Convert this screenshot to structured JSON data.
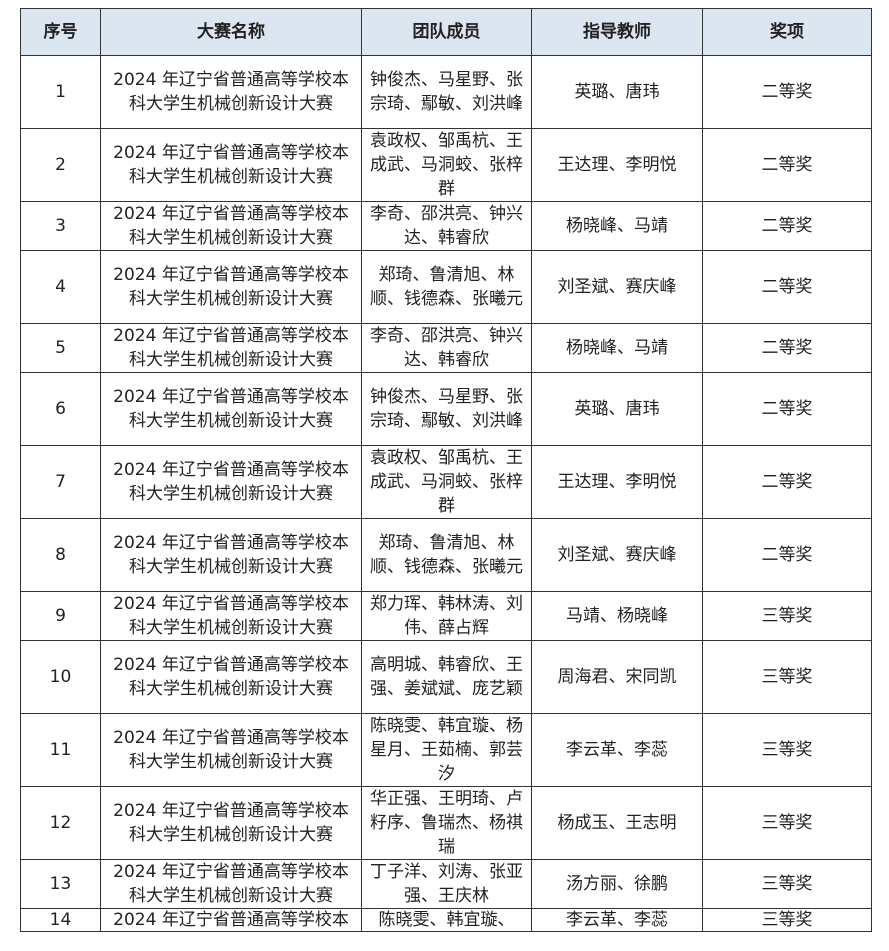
{
  "table": {
    "headers": [
      "序号",
      "大赛名称",
      "团队成员",
      "指导教师",
      "奖项"
    ],
    "rows": [
      {
        "no": "1",
        "competition": "2024 年辽宁省普通高等学校本科大学生机械创新设计大赛",
        "members": "钟俊杰、马星野、张宗琦、鄢敏、刘洪峰",
        "advisors": "英璐、唐玮",
        "award": "二等奖"
      },
      {
        "no": "2",
        "competition": "2024 年辽宁省普通高等学校本科大学生机械创新设计大赛",
        "members": "袁政权、邹禹杭、王成武、马洞蛟、张梓群",
        "advisors": "王达理、李明悦",
        "award": "二等奖"
      },
      {
        "no": "3",
        "competition": "2024 年辽宁省普通高等学校本科大学生机械创新设计大赛",
        "members": "李奇、邵洪亮、钟兴达、韩睿欣",
        "advisors": "杨晓峰、马靖",
        "award": "二等奖"
      },
      {
        "no": "4",
        "competition": "2024 年辽宁省普通高等学校本科大学生机械创新设计大赛",
        "members": "郑琦、鲁清旭、林顺、钱德森、张曦元",
        "advisors": "刘圣斌、赛庆峰",
        "award": "二等奖"
      },
      {
        "no": "5",
        "competition": "2024 年辽宁省普通高等学校本科大学生机械创新设计大赛",
        "members": "李奇、邵洪亮、钟兴达、韩睿欣",
        "advisors": "杨晓峰、马靖",
        "award": "二等奖"
      },
      {
        "no": "6",
        "competition": "2024 年辽宁省普通高等学校本科大学生机械创新设计大赛",
        "members": "钟俊杰、马星野、张宗琦、鄢敏、刘洪峰",
        "advisors": "英璐、唐玮",
        "award": "二等奖"
      },
      {
        "no": "7",
        "competition": "2024 年辽宁省普通高等学校本科大学生机械创新设计大赛",
        "members": "袁政权、邹禹杭、王成武、马洞蛟、张梓群",
        "advisors": "王达理、李明悦",
        "award": "二等奖"
      },
      {
        "no": "8",
        "competition": "2024 年辽宁省普通高等学校本科大学生机械创新设计大赛",
        "members": "郑琦、鲁清旭、林顺、钱德森、张曦元",
        "advisors": "刘圣斌、赛庆峰",
        "award": "二等奖"
      },
      {
        "no": "9",
        "competition": "2024 年辽宁省普通高等学校本科大学生机械创新设计大赛",
        "members": "郑力珲、韩林涛、刘伟、薛占辉",
        "advisors": "马靖、杨晓峰",
        "award": "三等奖"
      },
      {
        "no": "10",
        "competition": "2024 年辽宁省普通高等学校本科大学生机械创新设计大赛",
        "members": "高明城、韩睿欣、王强、姜斌斌、庞艺颖",
        "advisors": "周海君、宋同凯",
        "award": "三等奖"
      },
      {
        "no": "11",
        "competition": "2024 年辽宁省普通高等学校本科大学生机械创新设计大赛",
        "members": "陈晓雯、韩宜璇、杨星月、王茹楠、郭芸汐",
        "advisors": "李云革、李蕊",
        "award": "三等奖"
      },
      {
        "no": "12",
        "competition": "2024 年辽宁省普通高等学校本科大学生机械创新设计大赛",
        "members": "华正强、王明琦、卢籽序、鲁瑞杰、杨祺瑞",
        "advisors": "杨成玉、王志明",
        "award": "三等奖"
      },
      {
        "no": "13",
        "competition": "2024 年辽宁省普通高等学校本科大学生机械创新设计大赛",
        "members": "丁子洋、刘涛、张亚强、王庆林",
        "advisors": "汤方丽、徐鹏",
        "award": "三等奖"
      },
      {
        "no": "14",
        "competition": "2024 年辽宁省普通高等学校本",
        "members": "陈晓雯、韩宜璇、",
        "advisors": "李云革、李蕊",
        "award": "三等奖"
      }
    ]
  }
}
